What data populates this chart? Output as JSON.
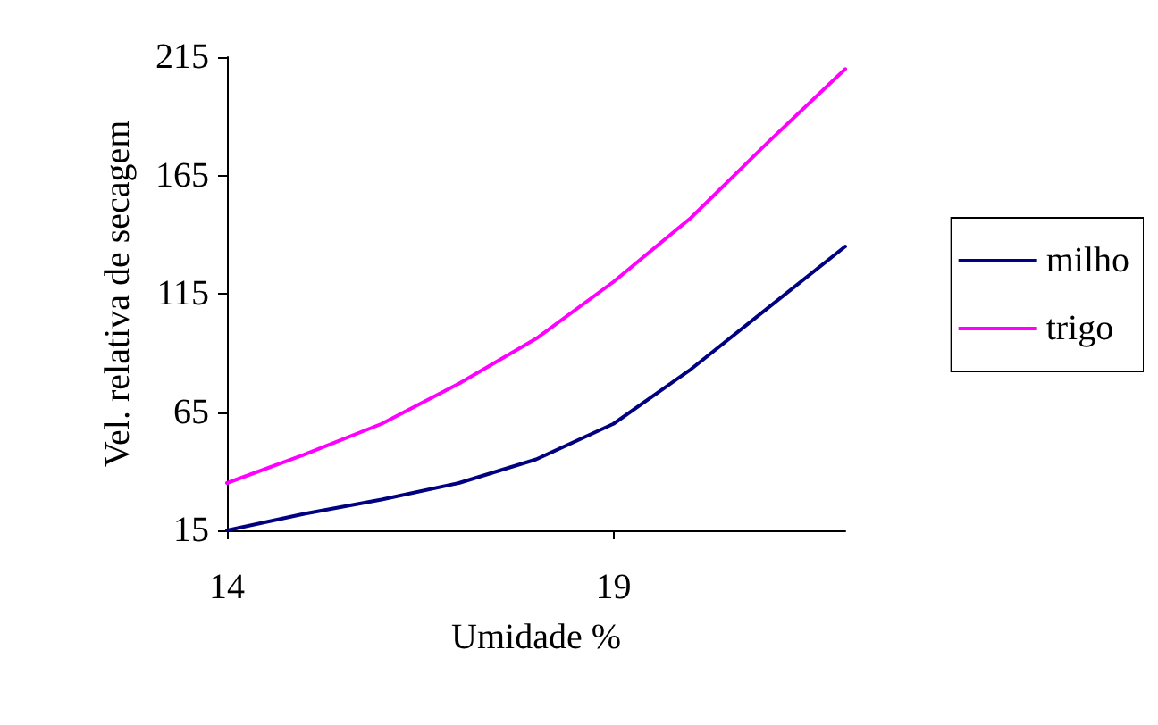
{
  "chart_data": {
    "type": "line",
    "xlabel": "Umidade %",
    "ylabel": "Vel. relativa de secagem",
    "x": [
      14,
      15,
      16,
      17,
      18,
      19,
      20,
      21,
      22
    ],
    "series": [
      {
        "name": "milho",
        "color": "#000080",
        "values": [
          15,
          22,
          28,
          35,
          45,
          60,
          83,
          109,
          135
        ]
      },
      {
        "name": "trigo",
        "color": "#ff00ff",
        "values": [
          35,
          47,
          60,
          77,
          96,
          120,
          147,
          179,
          210
        ]
      }
    ],
    "xlim": [
      14,
      22
    ],
    "xticks": [
      14,
      19
    ],
    "ylim": [
      15,
      215
    ],
    "yticks": [
      15,
      65,
      115,
      165,
      215
    ],
    "grid": false,
    "legend": "right",
    "marker": "none",
    "line_style": "solid"
  }
}
